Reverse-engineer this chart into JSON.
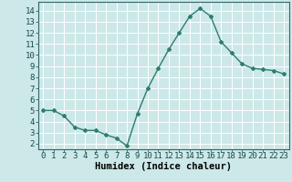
{
  "x": [
    0,
    1,
    2,
    3,
    4,
    5,
    6,
    7,
    8,
    9,
    10,
    11,
    12,
    13,
    14,
    15,
    16,
    17,
    18,
    19,
    20,
    21,
    22,
    23
  ],
  "y": [
    5.0,
    5.0,
    4.5,
    3.5,
    3.2,
    3.2,
    2.8,
    2.5,
    1.8,
    4.7,
    7.0,
    8.8,
    10.5,
    12.0,
    13.5,
    14.2,
    13.5,
    11.2,
    10.2,
    9.2,
    8.8,
    8.7,
    8.6,
    8.3
  ],
  "line_color": "#2e7d6e",
  "marker": "D",
  "marker_size": 2.0,
  "bg_color": "#cce8e8",
  "grid_color": "#ffffff",
  "xlabel": "Humidex (Indice chaleur)",
  "ylim": [
    1.5,
    14.8
  ],
  "xlim": [
    -0.5,
    23.5
  ],
  "yticks": [
    2,
    3,
    4,
    5,
    6,
    7,
    8,
    9,
    10,
    11,
    12,
    13,
    14
  ],
  "xticks": [
    0,
    1,
    2,
    3,
    4,
    5,
    6,
    7,
    8,
    9,
    10,
    11,
    12,
    13,
    14,
    15,
    16,
    17,
    18,
    19,
    20,
    21,
    22,
    23
  ],
  "xlabel_fontsize": 7.5,
  "tick_fontsize": 6.5,
  "line_width": 1.0
}
